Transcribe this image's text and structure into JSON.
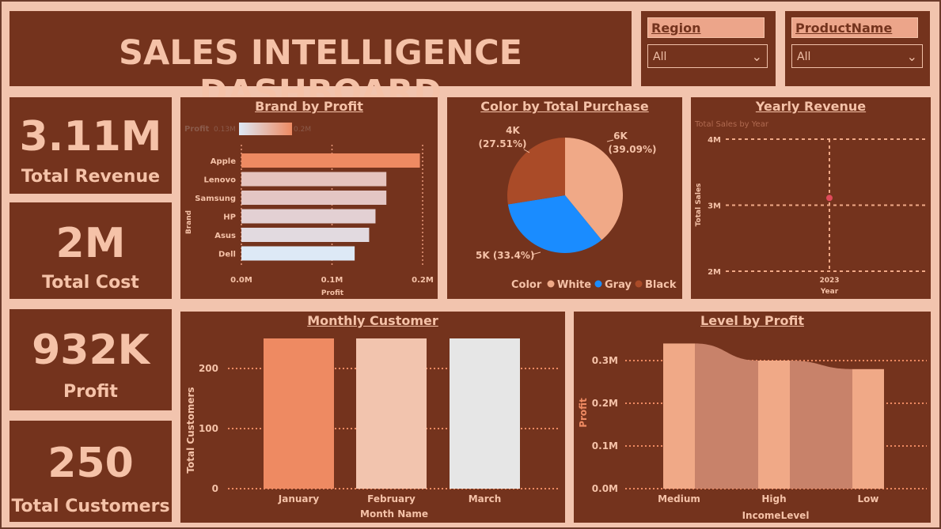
{
  "header": {
    "title": "SALES INTELLIGENCE DASHBOARD"
  },
  "slicers": [
    {
      "label": "Region",
      "value": "All"
    },
    {
      "label": "ProductName",
      "value": "All"
    }
  ],
  "kpis": [
    {
      "value": "3.11M",
      "label": "Total Revenue"
    },
    {
      "value": "2M",
      "label": "Total Cost"
    },
    {
      "value": "932K",
      "label": "Profit"
    },
    {
      "value": "250",
      "label": "Total Customers"
    }
  ],
  "colors": {
    "panel": "#74331d",
    "background": "#f2c4ae",
    "text": "#f5c2a8",
    "accent": "#ee8a62"
  },
  "chart_data": [
    {
      "type": "bar",
      "orientation": "horizontal",
      "title": "Brand by Profit",
      "xlabel": "Profit",
      "ylabel": "Brand",
      "categories": [
        "Apple",
        "Lenovo",
        "Samsung",
        "HP",
        "Asus",
        "Dell"
      ],
      "values": [
        0.197,
        0.16,
        0.16,
        0.148,
        0.141,
        0.125
      ],
      "xlim": [
        0,
        0.2
      ],
      "xticks": [
        "0.0M",
        "0.1M",
        "0.2M"
      ],
      "legend": {
        "title": "Profit",
        "min": "0.13M",
        "max": "0.2M"
      },
      "colors": [
        "#ee8a62",
        "#e5c3bd",
        "#e4c6c4",
        "#e3d0d3",
        "#e2dae0",
        "#dde9f6"
      ]
    },
    {
      "type": "pie",
      "title": "Color by Total Purchase",
      "slices": [
        {
          "name": "White",
          "value": 6,
          "label": "6K",
          "pct": "(39.09%)",
          "color": "#f0a987"
        },
        {
          "name": "Gray",
          "value": 5,
          "label": "5K (33.4%)",
          "pct": "",
          "color": "#1a8cff"
        },
        {
          "name": "Black",
          "value": 4,
          "label": "4K",
          "pct": "(27.51%)",
          "color": "#aa4b28"
        }
      ],
      "shares": [
        39.09,
        33.4,
        27.51
      ],
      "legend_title": "Color",
      "legend_position": "bottom-right"
    },
    {
      "type": "scatter",
      "title": "Yearly Revenue",
      "subtitle": "Total Sales by Year",
      "xlabel": "Year",
      "ylabel": "Total Sales",
      "x": [
        "2023"
      ],
      "y": [
        3.11
      ],
      "ylim": [
        2,
        4
      ],
      "yticks": [
        "2M",
        "3M",
        "4M"
      ],
      "point_color": "#e04a5a"
    },
    {
      "type": "bar",
      "title": "Monthly Customer",
      "xlabel": "Month Name",
      "ylabel": "Total Customers",
      "categories": [
        "January",
        "February",
        "March"
      ],
      "values": [
        250,
        250,
        250
      ],
      "ylim": [
        0,
        280
      ],
      "yticks": [
        "0",
        "100",
        "200"
      ],
      "colors": [
        "#ee8a62",
        "#f2c4ae",
        "#e6e6e6"
      ]
    },
    {
      "type": "bar",
      "title": "Level by Profit",
      "xlabel": "IncomeLevel",
      "ylabel": "Profit",
      "categories": [
        "Medium",
        "High",
        "Low"
      ],
      "values": [
        0.34,
        0.3,
        0.28
      ],
      "ylim": [
        0,
        0.36
      ],
      "yticks": [
        "0.0M",
        "0.1M",
        "0.2M",
        "0.3M"
      ],
      "bar_color": "#f0a987",
      "ribbon_color": "#c8826a"
    }
  ]
}
